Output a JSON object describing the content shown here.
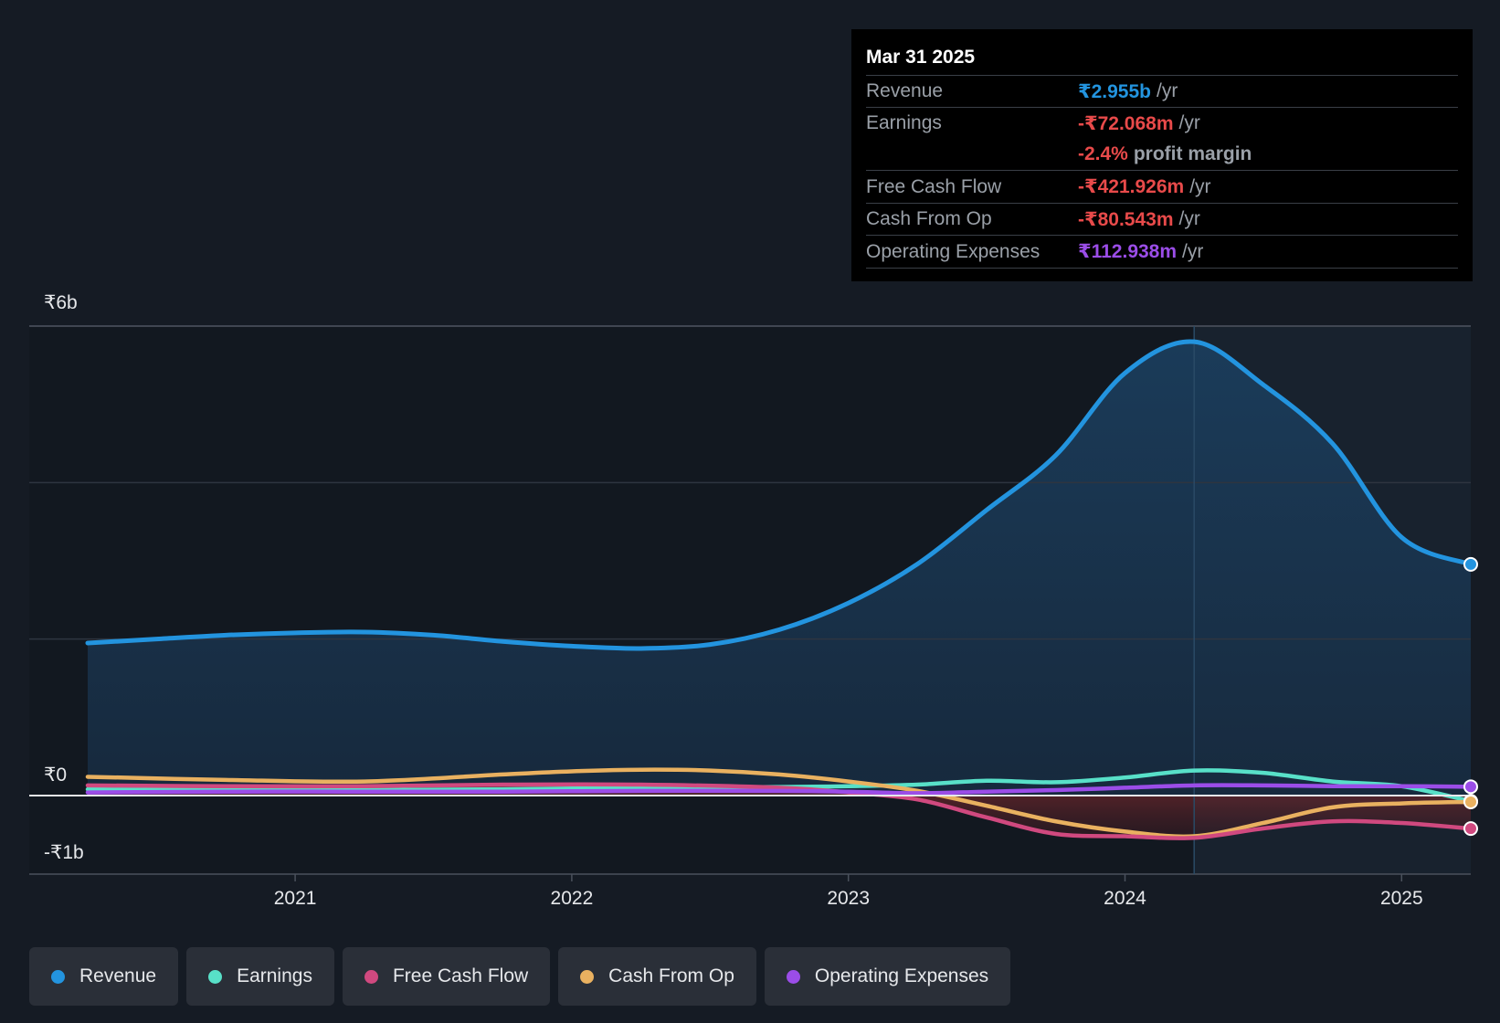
{
  "tooltip": {
    "date": "Mar 31 2025",
    "rows": [
      {
        "label": "Revenue",
        "value": "₹2.955b",
        "unit": "/yr",
        "color": "#2394df"
      },
      {
        "label": "Earnings",
        "value": "-₹72.068m",
        "unit": "/yr",
        "color": "#e84a4a"
      },
      {
        "label": "",
        "value": "-2.4%",
        "unit": "profit margin",
        "color": "#e84a4a"
      },
      {
        "label": "Free Cash Flow",
        "value": "-₹421.926m",
        "unit": "/yr",
        "color": "#e84a4a"
      },
      {
        "label": "Cash From Op",
        "value": "-₹80.543m",
        "unit": "/yr",
        "color": "#e84a4a"
      },
      {
        "label": "Operating Expenses",
        "value": "₹112.938m",
        "unit": "/yr",
        "color": "#9b4de8"
      }
    ]
  },
  "chart_data": {
    "type": "area",
    "y_axis_labels": [
      "₹6b",
      "₹0",
      "-₹1b"
    ],
    "ylim": [
      -1,
      6
    ],
    "y_unit": "₹b",
    "x_ticks": [
      "2021",
      "2022",
      "2023",
      "2024",
      "2025"
    ],
    "xlim": [
      2020.25,
      2025.25
    ],
    "highlight_start": 2024.25,
    "grid": true,
    "series": [
      {
        "name": "Revenue",
        "color": "#2394df",
        "x": [
          2020.25,
          2020.5,
          2020.75,
          2021.0,
          2021.25,
          2021.5,
          2021.75,
          2022.0,
          2022.25,
          2022.5,
          2022.75,
          2023.0,
          2023.25,
          2023.5,
          2023.75,
          2024.0,
          2024.25,
          2024.5,
          2024.75,
          2025.0,
          2025.25
        ],
        "values": [
          1.95,
          2.0,
          2.05,
          2.08,
          2.09,
          2.05,
          1.97,
          1.91,
          1.88,
          1.93,
          2.12,
          2.46,
          2.96,
          3.65,
          4.35,
          5.4,
          5.8,
          5.25,
          4.5,
          3.3,
          2.955
        ]
      },
      {
        "name": "Earnings",
        "color": "#58e0c8",
        "x": [
          2020.25,
          2020.75,
          2021.25,
          2021.75,
          2022.25,
          2022.75,
          2023.0,
          2023.25,
          2023.5,
          2023.75,
          2024.0,
          2024.25,
          2024.5,
          2024.75,
          2025.0,
          2025.25
        ],
        "values": [
          0.08,
          0.07,
          0.07,
          0.08,
          0.1,
          0.11,
          0.12,
          0.14,
          0.19,
          0.17,
          0.23,
          0.32,
          0.29,
          0.18,
          0.12,
          -0.072
        ]
      },
      {
        "name": "Free Cash Flow",
        "color": "#d0497f",
        "x": [
          2020.25,
          2020.75,
          2021.25,
          2021.75,
          2022.25,
          2022.75,
          2023.0,
          2023.25,
          2023.5,
          2023.75,
          2024.0,
          2024.25,
          2024.5,
          2024.75,
          2025.0,
          2025.25
        ],
        "values": [
          0.13,
          0.12,
          0.12,
          0.14,
          0.14,
          0.1,
          0.04,
          -0.05,
          -0.28,
          -0.49,
          -0.52,
          -0.54,
          -0.42,
          -0.33,
          -0.35,
          -0.422
        ]
      },
      {
        "name": "Cash From Op",
        "color": "#e9b160",
        "x": [
          2020.25,
          2020.75,
          2021.25,
          2021.75,
          2022.0,
          2022.25,
          2022.5,
          2022.75,
          2023.0,
          2023.25,
          2023.5,
          2023.75,
          2024.0,
          2024.25,
          2024.5,
          2024.75,
          2025.0,
          2025.25
        ],
        "values": [
          0.24,
          0.2,
          0.18,
          0.27,
          0.31,
          0.33,
          0.32,
          0.27,
          0.18,
          0.06,
          -0.13,
          -0.33,
          -0.46,
          -0.52,
          -0.35,
          -0.15,
          -0.1,
          -0.081
        ]
      },
      {
        "name": "Operating Expenses",
        "color": "#9b4de8",
        "x": [
          2020.25,
          2020.75,
          2021.25,
          2021.75,
          2022.25,
          2022.75,
          2023.0,
          2023.25,
          2023.5,
          2023.75,
          2024.0,
          2024.25,
          2024.5,
          2024.75,
          2025.0,
          2025.25
        ],
        "values": [
          0.04,
          0.05,
          0.05,
          0.05,
          0.06,
          0.06,
          0.05,
          0.03,
          0.05,
          0.07,
          0.1,
          0.13,
          0.13,
          0.12,
          0.12,
          0.113
        ]
      }
    ]
  },
  "legend": {
    "items": [
      {
        "label": "Revenue",
        "color": "#2394df"
      },
      {
        "label": "Earnings",
        "color": "#58e0c8"
      },
      {
        "label": "Free Cash Flow",
        "color": "#d0497f"
      },
      {
        "label": "Cash From Op",
        "color": "#e9b160"
      },
      {
        "label": "Operating Expenses",
        "color": "#9b4de8"
      }
    ]
  }
}
